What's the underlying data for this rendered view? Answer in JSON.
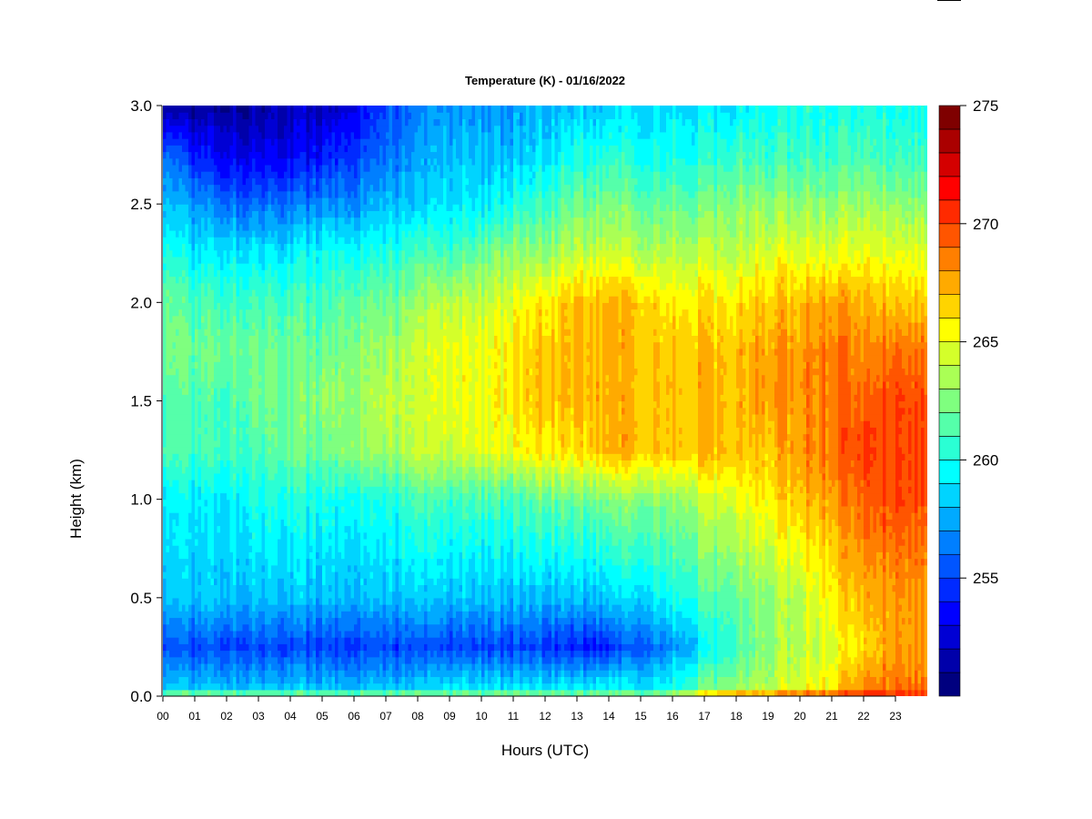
{
  "chart_data": {
    "type": "heatmap",
    "title": "Temperature (K) - 01/16/2022",
    "xlabel": "Hours (UTC)",
    "ylabel": "Height (km)",
    "xlim": [
      0,
      24
    ],
    "ylim": [
      0,
      3
    ],
    "x_ticks": [
      "00",
      "01",
      "02",
      "03",
      "04",
      "05",
      "06",
      "07",
      "08",
      "09",
      "10",
      "11",
      "12",
      "13",
      "14",
      "15",
      "16",
      "17",
      "18",
      "19",
      "20",
      "21",
      "22",
      "23"
    ],
    "y_ticks": [
      "0.0",
      "0.5",
      "1.0",
      "1.5",
      "2.0",
      "2.5",
      "3.0"
    ],
    "y_tick_values": [
      0,
      0.5,
      1.0,
      1.5,
      2.0,
      2.5,
      3.0
    ],
    "colorbar": {
      "min": 251,
      "max": 275,
      "step": 1,
      "tick_labels": [
        "255",
        "260",
        "265",
        "270",
        "275"
      ],
      "tick_values": [
        255,
        260,
        265,
        270,
        275
      ],
      "colors": [
        "#00007f",
        "#0000aa",
        "#0000d4",
        "#0000ff",
        "#002aff",
        "#0055ff",
        "#007fff",
        "#00aaff",
        "#00d4ff",
        "#00ffff",
        "#2affd4",
        "#55ffaa",
        "#7fff7f",
        "#aaff55",
        "#d4ff2a",
        "#ffff00",
        "#ffd400",
        "#ffaa00",
        "#ff7f00",
        "#ff5500",
        "#ff2a00",
        "#ff0000",
        "#d40000",
        "#aa0000",
        "#7f0000"
      ]
    },
    "grid_hours": [
      0,
      1,
      2,
      3,
      4,
      5,
      6,
      7,
      8,
      9,
      10,
      11,
      12,
      13,
      14,
      15,
      16,
      17,
      18,
      19,
      20,
      21,
      22,
      23,
      24
    ],
    "grid_heights": [
      0.0,
      0.05,
      0.25,
      0.5,
      1.0,
      1.25,
      1.5,
      1.75,
      2.0,
      2.25,
      2.5,
      2.75,
      3.0
    ],
    "temperature_k": [
      [
        264,
        259,
        256,
        259,
        260,
        262,
        262,
        263,
        263,
        261,
        259,
        257,
        252
      ],
      [
        264,
        259,
        256,
        259,
        260,
        262,
        262,
        263,
        262,
        260,
        258,
        255,
        252
      ],
      [
        264,
        259,
        256,
        259,
        260,
        262,
        262,
        263,
        262,
        260,
        257,
        254,
        252
      ],
      [
        264,
        259,
        256,
        259,
        261,
        262,
        263,
        263,
        262,
        260,
        257,
        254,
        252
      ],
      [
        264,
        259,
        256,
        259,
        261,
        263,
        263,
        263,
        262,
        260,
        257,
        254,
        253
      ],
      [
        264,
        259,
        256,
        259,
        261,
        263,
        264,
        263,
        262,
        261,
        258,
        255,
        253
      ],
      [
        264,
        259,
        256,
        259,
        261,
        264,
        264,
        264,
        263,
        261,
        258,
        256,
        254
      ],
      [
        264,
        259,
        256,
        259,
        261,
        264,
        265,
        264,
        263,
        261,
        259,
        257,
        256
      ],
      [
        264,
        259,
        256,
        259,
        262,
        265,
        265,
        265,
        264,
        262,
        259,
        258,
        257
      ],
      [
        264,
        260,
        256,
        259,
        262,
        265,
        266,
        266,
        265,
        262,
        260,
        259,
        258
      ],
      [
        264,
        260,
        256,
        259,
        262,
        266,
        266,
        266,
        265,
        263,
        260,
        259,
        258
      ],
      [
        264,
        260,
        256,
        259,
        262,
        266,
        267,
        267,
        266,
        264,
        261,
        259,
        258
      ],
      [
        264,
        260,
        256,
        259,
        263,
        267,
        268,
        268,
        267,
        264,
        262,
        260,
        259
      ],
      [
        264,
        260,
        255,
        259,
        263,
        267,
        268,
        268,
        268,
        265,
        263,
        261,
        259
      ],
      [
        264,
        260,
        255,
        259,
        263,
        268,
        268,
        268,
        268,
        265,
        263,
        261,
        259
      ],
      [
        264,
        260,
        257,
        260,
        264,
        268,
        268,
        268,
        268,
        265,
        263,
        261,
        260
      ],
      [
        265,
        261,
        258,
        261,
        264,
        268,
        268,
        268,
        267,
        265,
        263,
        261,
        260
      ],
      [
        268,
        263,
        260,
        262,
        265,
        268,
        268,
        268,
        267,
        265,
        263,
        261,
        260
      ],
      [
        270,
        264,
        262,
        263,
        266,
        268,
        268,
        268,
        267,
        265,
        264,
        262,
        260
      ],
      [
        270,
        265,
        264,
        264,
        267,
        268,
        269,
        269,
        268,
        266,
        264,
        262,
        261
      ],
      [
        271,
        266,
        265,
        265,
        268,
        269,
        269,
        269,
        268,
        266,
        264,
        262,
        261
      ],
      [
        271,
        267,
        266,
        267,
        269,
        270,
        270,
        270,
        269,
        266,
        264,
        262,
        261
      ],
      [
        272,
        269,
        267,
        268,
        270,
        271,
        270,
        269,
        268,
        266,
        264,
        262,
        261
      ],
      [
        272,
        270,
        269,
        269,
        271,
        271,
        271,
        270,
        268,
        266,
        264,
        262,
        261
      ],
      [
        272,
        270,
        269,
        269,
        271,
        271,
        271,
        270,
        268,
        266,
        264,
        262,
        261
      ]
    ]
  }
}
